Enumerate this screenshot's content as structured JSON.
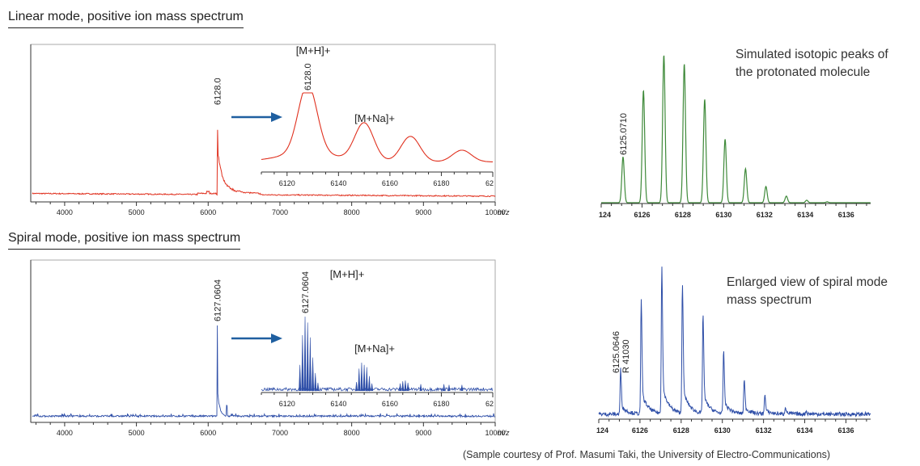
{
  "sections": {
    "linear_title": "Linear mode, positive ion mass spectrum",
    "spiral_title": "Spiral mode, positive ion mass spectrum"
  },
  "captions": {
    "simulated_line1": "Simulated isotopic peaks of",
    "simulated_line2": "the protonated molecule",
    "enlarged_line1": "Enlarged view of spiral mode",
    "enlarged_line2": "mass spectrum"
  },
  "footer": "(Sample courtesy of Prof. Masumi Taki, the University of Electro-Communications)",
  "colors": {
    "linear": "#e0301e",
    "spiral": "#2f4fa8",
    "simulated": "#3f8a3a",
    "arrow": "#1f5fa0"
  },
  "chart_data": [
    {
      "id": "linear-full",
      "type": "line",
      "title": "Linear mode, positive ion mass spectrum",
      "xlabel": "m/z",
      "xlim": [
        3550,
        10000
      ],
      "xticks": [
        "4000",
        "5000",
        "6000",
        "7000",
        "8000",
        "9000",
        "10000"
      ],
      "peak_label": "6128.0",
      "peaks": [
        {
          "x": 6128.0,
          "y": 1.0
        }
      ],
      "baseline_note": "noisy decaying baseline"
    },
    {
      "id": "linear-inset",
      "type": "line",
      "xlim": [
        6110,
        6200
      ],
      "xticks": [
        "6120",
        "6140",
        "6160",
        "6180",
        "62"
      ],
      "annotations": [
        "[M+H]+",
        "6128.0",
        "[M+Na]+"
      ],
      "peaks": [
        {
          "x": 6128,
          "y": 1.0
        },
        {
          "x": 6150,
          "y": 0.55
        },
        {
          "x": 6168,
          "y": 0.37
        },
        {
          "x": 6188,
          "y": 0.17
        }
      ]
    },
    {
      "id": "simulated",
      "type": "line",
      "title": "Simulated isotopic peaks of the protonated molecule",
      "xlim": [
        6124,
        6137.2
      ],
      "xticks": [
        "124",
        "6126",
        "6128",
        "6130",
        "6132",
        "6134",
        "6136"
      ],
      "peak_label": "6125.0710",
      "peaks": [
        {
          "x": 6125.07,
          "y": 0.31
        },
        {
          "x": 6126.07,
          "y": 0.76
        },
        {
          "x": 6127.07,
          "y": 1.0
        },
        {
          "x": 6128.07,
          "y": 0.94
        },
        {
          "x": 6129.07,
          "y": 0.7
        },
        {
          "x": 6130.07,
          "y": 0.43
        },
        {
          "x": 6131.07,
          "y": 0.23
        },
        {
          "x": 6132.07,
          "y": 0.11
        },
        {
          "x": 6133.07,
          "y": 0.045
        },
        {
          "x": 6134.07,
          "y": 0.017
        },
        {
          "x": 6135.07,
          "y": 0.006
        }
      ]
    },
    {
      "id": "spiral-full",
      "type": "line",
      "title": "Spiral mode, positive ion mass spectrum",
      "xlabel": "m/z",
      "xlim": [
        3550,
        10000
      ],
      "xticks": [
        "4000",
        "5000",
        "6000",
        "7000",
        "8000",
        "9000",
        "10000"
      ],
      "peak_label": "6127.0604",
      "peaks": [
        {
          "x": 6127.06,
          "y": 1.0
        }
      ]
    },
    {
      "id": "spiral-inset",
      "type": "line",
      "xlim": [
        6110,
        6200
      ],
      "xticks": [
        "6120",
        "6140",
        "6160",
        "6180",
        "62"
      ],
      "annotations": [
        "6127.0604",
        "[M+H]+",
        "[M+Na]+"
      ],
      "peaks": [
        {
          "x": 6125,
          "y": 0.35
        },
        {
          "x": 6126,
          "y": 0.75
        },
        {
          "x": 6127,
          "y": 1.0
        },
        {
          "x": 6128,
          "y": 0.92
        },
        {
          "x": 6129,
          "y": 0.72
        },
        {
          "x": 6130,
          "y": 0.45
        },
        {
          "x": 6131,
          "y": 0.24
        },
        {
          "x": 6132,
          "y": 0.11
        },
        {
          "x": 6147,
          "y": 0.12
        },
        {
          "x": 6148,
          "y": 0.3
        },
        {
          "x": 6149,
          "y": 0.38
        },
        {
          "x": 6150,
          "y": 0.35
        },
        {
          "x": 6151,
          "y": 0.32
        },
        {
          "x": 6152,
          "y": 0.2
        },
        {
          "x": 6153,
          "y": 0.1
        },
        {
          "x": 6164,
          "y": 0.1
        },
        {
          "x": 6165,
          "y": 0.13
        },
        {
          "x": 6166,
          "y": 0.14
        },
        {
          "x": 6167,
          "y": 0.11
        },
        {
          "x": 6172,
          "y": 0.09
        },
        {
          "x": 6181,
          "y": 0.09
        },
        {
          "x": 6183,
          "y": 0.08
        },
        {
          "x": 6188,
          "y": 0.08
        }
      ]
    },
    {
      "id": "spiral-enlarged",
      "type": "line",
      "title": "Enlarged view of spiral mode mass spectrum",
      "xlim": [
        6124,
        6137.2
      ],
      "xticks": [
        "124",
        "6126",
        "6128",
        "6130",
        "6132",
        "6134",
        "6136"
      ],
      "peak_label": "6125.0646",
      "resolution_label": "R 41030",
      "peaks": [
        {
          "x": 6125.06,
          "y": 0.3
        },
        {
          "x": 6126.06,
          "y": 0.76
        },
        {
          "x": 6127.06,
          "y": 1.0
        },
        {
          "x": 6128.06,
          "y": 0.88
        },
        {
          "x": 6129.06,
          "y": 0.67
        },
        {
          "x": 6130.06,
          "y": 0.42
        },
        {
          "x": 6131.06,
          "y": 0.23
        },
        {
          "x": 6132.06,
          "y": 0.13
        },
        {
          "x": 6133.06,
          "y": 0.05
        },
        {
          "x": 6134.06,
          "y": 0.02
        }
      ]
    }
  ]
}
